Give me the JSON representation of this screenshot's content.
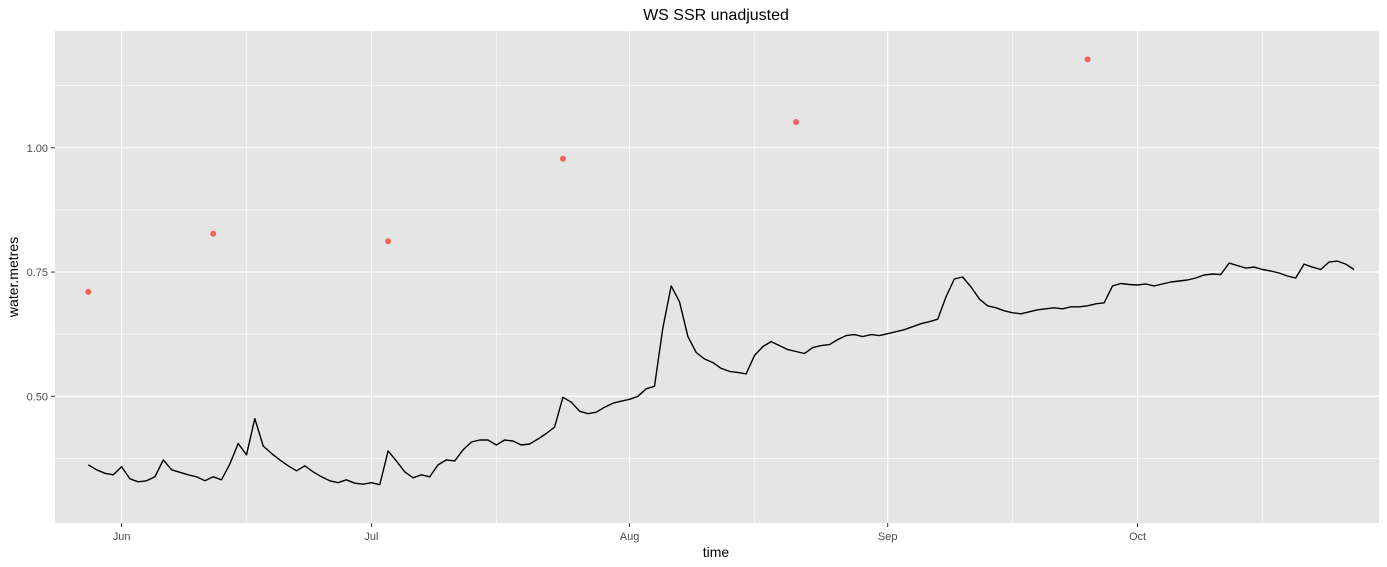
{
  "chart_data": {
    "type": "line",
    "title": "WS SSR unadjusted",
    "xlabel": "time",
    "ylabel": "water.metres",
    "x_domain": [
      "2022-05-24",
      "2022-10-30"
    ],
    "ylim": [
      0.245,
      1.235
    ],
    "x_ticks": [
      {
        "date": "2022-06-01",
        "label": "Jun"
      },
      {
        "date": "2022-07-01",
        "label": "Jul"
      },
      {
        "date": "2022-08-01",
        "label": "Aug"
      },
      {
        "date": "2022-09-01",
        "label": "Sep"
      },
      {
        "date": "2022-10-01",
        "label": "Oct"
      }
    ],
    "x_minor_ticks": [
      "2022-06-16",
      "2022-07-16",
      "2022-08-16",
      "2022-09-16",
      "2022-10-16"
    ],
    "y_ticks": [
      0.5,
      0.75,
      1.0
    ],
    "y_tick_labels": [
      "0.50",
      "0.75",
      "1.00"
    ],
    "y_minor_ticks": [
      0.375,
      0.625,
      0.875,
      1.125
    ],
    "grid": true,
    "colors": {
      "panel": "#e5e5e5",
      "grid": "#ffffff",
      "line": "#000000",
      "points": "#f0635a"
    },
    "series": [
      {
        "kind": "line",
        "points": [
          [
            "2022-05-28",
            0.362
          ],
          [
            "2022-05-29",
            0.352
          ],
          [
            "2022-05-30",
            0.345
          ],
          [
            "2022-05-31",
            0.342
          ],
          [
            "2022-06-01",
            0.358
          ],
          [
            "2022-06-02",
            0.334
          ],
          [
            "2022-06-03",
            0.328
          ],
          [
            "2022-06-04",
            0.33
          ],
          [
            "2022-06-05",
            0.338
          ],
          [
            "2022-06-06",
            0.372
          ],
          [
            "2022-06-07",
            0.352
          ],
          [
            "2022-06-08",
            0.347
          ],
          [
            "2022-06-09",
            0.342
          ],
          [
            "2022-06-10",
            0.338
          ],
          [
            "2022-06-11",
            0.33
          ],
          [
            "2022-06-12",
            0.338
          ],
          [
            "2022-06-13",
            0.332
          ],
          [
            "2022-06-14",
            0.364
          ],
          [
            "2022-06-15",
            0.405
          ],
          [
            "2022-06-16",
            0.382
          ],
          [
            "2022-06-17",
            0.455
          ],
          [
            "2022-06-18",
            0.4
          ],
          [
            "2022-06-19",
            0.385
          ],
          [
            "2022-06-20",
            0.372
          ],
          [
            "2022-06-21",
            0.36
          ],
          [
            "2022-06-22",
            0.35
          ],
          [
            "2022-06-23",
            0.36
          ],
          [
            "2022-06-24",
            0.348
          ],
          [
            "2022-06-25",
            0.338
          ],
          [
            "2022-06-26",
            0.33
          ],
          [
            "2022-06-27",
            0.326
          ],
          [
            "2022-06-28",
            0.332
          ],
          [
            "2022-06-29",
            0.325
          ],
          [
            "2022-06-30",
            0.323
          ],
          [
            "2022-07-01",
            0.326
          ],
          [
            "2022-07-02",
            0.322
          ],
          [
            "2022-07-03",
            0.39
          ],
          [
            "2022-07-04",
            0.37
          ],
          [
            "2022-07-05",
            0.348
          ],
          [
            "2022-07-06",
            0.336
          ],
          [
            "2022-07-07",
            0.342
          ],
          [
            "2022-07-08",
            0.338
          ],
          [
            "2022-07-09",
            0.362
          ],
          [
            "2022-07-10",
            0.372
          ],
          [
            "2022-07-11",
            0.37
          ],
          [
            "2022-07-12",
            0.392
          ],
          [
            "2022-07-13",
            0.408
          ],
          [
            "2022-07-14",
            0.412
          ],
          [
            "2022-07-15",
            0.412
          ],
          [
            "2022-07-16",
            0.402
          ],
          [
            "2022-07-17",
            0.412
          ],
          [
            "2022-07-18",
            0.41
          ],
          [
            "2022-07-19",
            0.402
          ],
          [
            "2022-07-20",
            0.404
          ],
          [
            "2022-07-21",
            0.414
          ],
          [
            "2022-07-22",
            0.425
          ],
          [
            "2022-07-23",
            0.438
          ],
          [
            "2022-07-24",
            0.498
          ],
          [
            "2022-07-25",
            0.488
          ],
          [
            "2022-07-26",
            0.47
          ],
          [
            "2022-07-27",
            0.465
          ],
          [
            "2022-07-28",
            0.468
          ],
          [
            "2022-07-29",
            0.478
          ],
          [
            "2022-07-30",
            0.486
          ],
          [
            "2022-07-31",
            0.49
          ],
          [
            "2022-08-01",
            0.494
          ],
          [
            "2022-08-02",
            0.5
          ],
          [
            "2022-08-03",
            0.515
          ],
          [
            "2022-08-04",
            0.52
          ],
          [
            "2022-08-05",
            0.638
          ],
          [
            "2022-08-06",
            0.722
          ],
          [
            "2022-08-07",
            0.69
          ],
          [
            "2022-08-08",
            0.62
          ],
          [
            "2022-08-09",
            0.588
          ],
          [
            "2022-08-10",
            0.575
          ],
          [
            "2022-08-11",
            0.568
          ],
          [
            "2022-08-12",
            0.556
          ],
          [
            "2022-08-13",
            0.55
          ],
          [
            "2022-08-14",
            0.548
          ],
          [
            "2022-08-15",
            0.545
          ],
          [
            "2022-08-16",
            0.582
          ],
          [
            "2022-08-17",
            0.6
          ],
          [
            "2022-08-18",
            0.61
          ],
          [
            "2022-08-19",
            0.602
          ],
          [
            "2022-08-20",
            0.594
          ],
          [
            "2022-08-21",
            0.59
          ],
          [
            "2022-08-22",
            0.586
          ],
          [
            "2022-08-23",
            0.598
          ],
          [
            "2022-08-24",
            0.602
          ],
          [
            "2022-08-25",
            0.604
          ],
          [
            "2022-08-26",
            0.614
          ],
          [
            "2022-08-27",
            0.622
          ],
          [
            "2022-08-28",
            0.624
          ],
          [
            "2022-08-29",
            0.62
          ],
          [
            "2022-08-30",
            0.624
          ],
          [
            "2022-08-31",
            0.622
          ],
          [
            "2022-09-01",
            0.626
          ],
          [
            "2022-09-02",
            0.63
          ],
          [
            "2022-09-03",
            0.634
          ],
          [
            "2022-09-04",
            0.64
          ],
          [
            "2022-09-05",
            0.646
          ],
          [
            "2022-09-06",
            0.65
          ],
          [
            "2022-09-07",
            0.655
          ],
          [
            "2022-09-08",
            0.7
          ],
          [
            "2022-09-09",
            0.736
          ],
          [
            "2022-09-10",
            0.74
          ],
          [
            "2022-09-11",
            0.72
          ],
          [
            "2022-09-12",
            0.696
          ],
          [
            "2022-09-13",
            0.682
          ],
          [
            "2022-09-14",
            0.678
          ],
          [
            "2022-09-15",
            0.672
          ],
          [
            "2022-09-16",
            0.668
          ],
          [
            "2022-09-17",
            0.666
          ],
          [
            "2022-09-18",
            0.67
          ],
          [
            "2022-09-19",
            0.674
          ],
          [
            "2022-09-20",
            0.676
          ],
          [
            "2022-09-21",
            0.678
          ],
          [
            "2022-09-22",
            0.676
          ],
          [
            "2022-09-23",
            0.68
          ],
          [
            "2022-09-24",
            0.68
          ],
          [
            "2022-09-25",
            0.682
          ],
          [
            "2022-09-26",
            0.686
          ],
          [
            "2022-09-27",
            0.688
          ],
          [
            "2022-09-28",
            0.722
          ],
          [
            "2022-09-29",
            0.727
          ],
          [
            "2022-09-30",
            0.725
          ],
          [
            "2022-10-01",
            0.724
          ],
          [
            "2022-10-02",
            0.726
          ],
          [
            "2022-10-03",
            0.722
          ],
          [
            "2022-10-04",
            0.726
          ],
          [
            "2022-10-05",
            0.73
          ],
          [
            "2022-10-06",
            0.732
          ],
          [
            "2022-10-07",
            0.734
          ],
          [
            "2022-10-08",
            0.738
          ],
          [
            "2022-10-09",
            0.744
          ],
          [
            "2022-10-10",
            0.746
          ],
          [
            "2022-10-11",
            0.745
          ],
          [
            "2022-10-12",
            0.768
          ],
          [
            "2022-10-13",
            0.763
          ],
          [
            "2022-10-14",
            0.758
          ],
          [
            "2022-10-15",
            0.76
          ],
          [
            "2022-10-16",
            0.755
          ],
          [
            "2022-10-17",
            0.752
          ],
          [
            "2022-10-18",
            0.748
          ],
          [
            "2022-10-19",
            0.742
          ],
          [
            "2022-10-20",
            0.738
          ],
          [
            "2022-10-21",
            0.766
          ],
          [
            "2022-10-22",
            0.76
          ],
          [
            "2022-10-23",
            0.755
          ],
          [
            "2022-10-24",
            0.77
          ],
          [
            "2022-10-25",
            0.772
          ],
          [
            "2022-10-26",
            0.766
          ],
          [
            "2022-10-27",
            0.755
          ]
        ]
      },
      {
        "kind": "scatter",
        "points": [
          [
            "2022-05-28",
            0.71
          ],
          [
            "2022-06-12",
            0.827
          ],
          [
            "2022-07-03",
            0.812
          ],
          [
            "2022-07-24",
            0.978
          ],
          [
            "2022-08-21",
            1.052
          ],
          [
            "2022-09-25",
            1.178
          ]
        ]
      }
    ]
  }
}
